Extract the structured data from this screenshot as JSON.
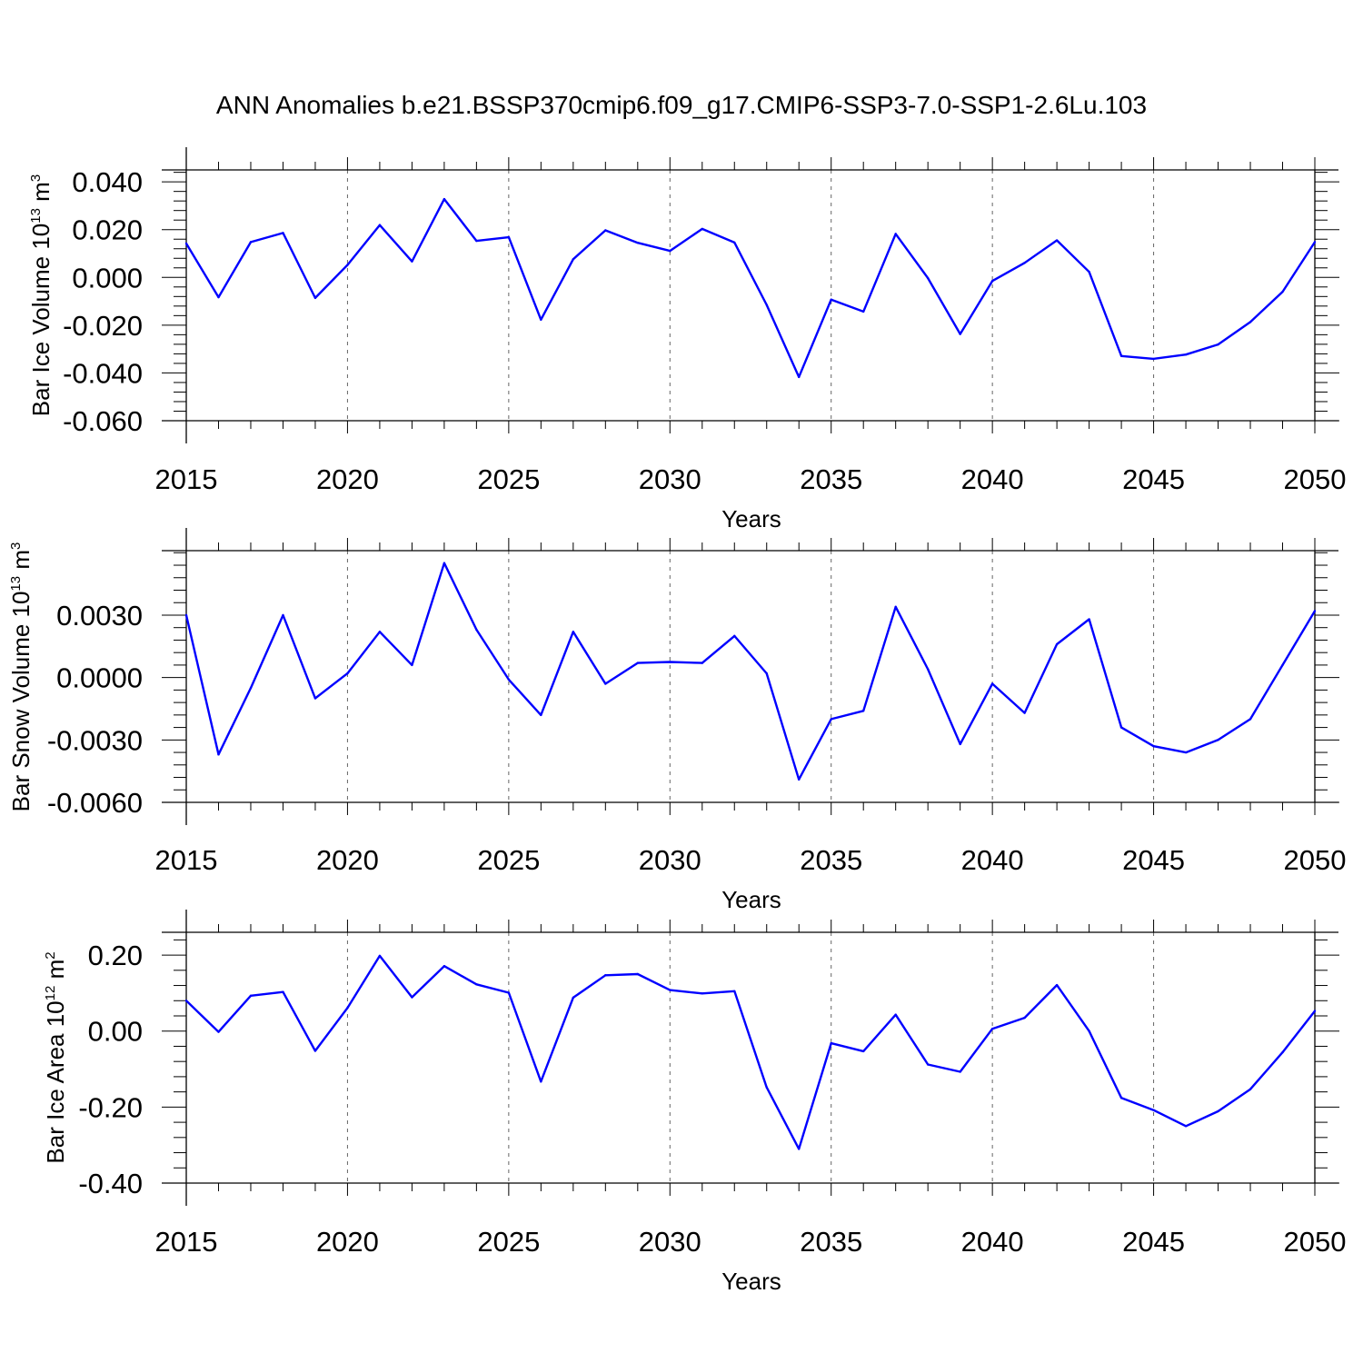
{
  "title": "ANN Anomalies b.e21.BSSP370cmip6.f09_g17.CMIP6-SSP3-7.0-SSP1-2.6Lu.103",
  "colors": {
    "series": "#0000ff",
    "axis": "#000000",
    "grid": "#666666"
  },
  "chart_data": [
    {
      "type": "line",
      "ylabel": "Bar Ice Volume 10",
      "ylabel_exp": "13",
      "ylabel_unit": " m",
      "ylabel_unit_exp": "3",
      "xlabel": "Years",
      "xlim": [
        2015,
        2050
      ],
      "ylim": [
        -0.06,
        0.045
      ],
      "xticks": [
        2015,
        2020,
        2025,
        2030,
        2035,
        2040,
        2045,
        2050
      ],
      "xtick_labels": [
        "2015",
        "2020",
        "2025",
        "2030",
        "2035",
        "2040",
        "2045",
        "2050"
      ],
      "yticks": [
        0.04,
        0.02,
        0.0,
        -0.02,
        -0.04,
        -0.06
      ],
      "ytick_labels": [
        "0.040",
        "0.020",
        "0.000",
        "-0.020",
        "-0.040",
        "-0.060"
      ],
      "grid": "vertical-dashed",
      "x": [
        2015,
        2016,
        2017,
        2018,
        2019,
        2020,
        2021,
        2022,
        2023,
        2024,
        2025,
        2026,
        2027,
        2028,
        2029,
        2030,
        2031,
        2032,
        2033,
        2034,
        2035,
        2036,
        2037,
        2038,
        2039,
        2040,
        2041,
        2042,
        2043,
        2044,
        2045,
        2046,
        2047,
        2048,
        2049,
        2050
      ],
      "values": [
        0.0142,
        -0.0083,
        0.0148,
        0.0186,
        -0.0086,
        0.0052,
        0.0219,
        0.0067,
        0.0328,
        0.0153,
        0.0168,
        -0.0177,
        0.0076,
        0.0197,
        0.0145,
        0.0111,
        0.0203,
        0.0146,
        -0.0115,
        -0.0417,
        -0.0093,
        -0.0143,
        0.0182,
        -0.0003,
        -0.0237,
        -0.0015,
        0.0061,
        0.0155,
        0.0023,
        -0.0329,
        -0.0341,
        -0.0323,
        -0.0281,
        -0.0187,
        -0.006,
        0.0148
      ]
    },
    {
      "type": "line",
      "ylabel": "Bar Snow Volume 10",
      "ylabel_exp": "13",
      "ylabel_unit": " m",
      "ylabel_unit_exp": "3",
      "xlabel": "Years",
      "xlim": [
        2015,
        2050
      ],
      "ylim": [
        -0.006,
        0.0061
      ],
      "xticks": [
        2015,
        2020,
        2025,
        2030,
        2035,
        2040,
        2045,
        2050
      ],
      "xtick_labels": [
        "2015",
        "2020",
        "2025",
        "2030",
        "2035",
        "2040",
        "2045",
        "2050"
      ],
      "yticks": [
        0.003,
        0.0,
        -0.003,
        -0.006
      ],
      "ytick_labels": [
        "0.0030",
        "0.0000",
        "-0.0030",
        "-0.0060"
      ],
      "grid": "vertical-dashed",
      "x": [
        2015,
        2016,
        2017,
        2018,
        2019,
        2020,
        2021,
        2022,
        2023,
        2024,
        2025,
        2026,
        2027,
        2028,
        2029,
        2030,
        2031,
        2032,
        2033,
        2034,
        2035,
        2036,
        2037,
        2038,
        2039,
        2040,
        2041,
        2042,
        2043,
        2044,
        2045,
        2046,
        2047,
        2048,
        2049,
        2050
      ],
      "values": [
        0.003,
        -0.0037,
        -0.0005,
        0.003,
        -0.001,
        0.0002,
        0.0022,
        0.0006,
        0.0055,
        0.0023,
        -0.0001,
        -0.0018,
        0.0022,
        -0.0003,
        0.0007,
        0.00075,
        0.0007,
        0.002,
        0.0002,
        -0.0049,
        -0.002,
        -0.0016,
        0.0034,
        0.0004,
        -0.0032,
        -0.0003,
        -0.0017,
        0.0016,
        0.0028,
        -0.0024,
        -0.0033,
        -0.0036,
        -0.003,
        -0.002,
        0.0006,
        0.0032
      ]
    },
    {
      "type": "line",
      "ylabel": "Bar Ice Area 10",
      "ylabel_exp": "12",
      "ylabel_unit": " m",
      "ylabel_unit_exp": "2",
      "xlabel": "Years",
      "xlim": [
        2015,
        2050
      ],
      "ylim": [
        -0.4,
        0.26
      ],
      "xticks": [
        2015,
        2020,
        2025,
        2030,
        2035,
        2040,
        2045,
        2050
      ],
      "xtick_labels": [
        "2015",
        "2020",
        "2025",
        "2030",
        "2035",
        "2040",
        "2045",
        "2050"
      ],
      "yticks": [
        0.2,
        0.0,
        -0.2,
        -0.4
      ],
      "ytick_labels": [
        "0.20",
        "0.00",
        "-0.20",
        "-0.40"
      ],
      "grid": "vertical-dashed",
      "x": [
        2015,
        2016,
        2017,
        2018,
        2019,
        2020,
        2021,
        2022,
        2023,
        2024,
        2025,
        2026,
        2027,
        2028,
        2029,
        2030,
        2031,
        2032,
        2033,
        2034,
        2035,
        2036,
        2037,
        2038,
        2039,
        2040,
        2041,
        2042,
        2043,
        2044,
        2045,
        2046,
        2047,
        2048,
        2049,
        2050
      ],
      "values": [
        0.08,
        -0.002,
        0.093,
        0.103,
        -0.052,
        0.061,
        0.198,
        0.089,
        0.171,
        0.123,
        0.101,
        -0.133,
        0.088,
        0.147,
        0.15,
        0.108,
        0.099,
        0.105,
        -0.148,
        -0.31,
        -0.032,
        -0.053,
        0.043,
        -0.088,
        -0.107,
        0.006,
        0.035,
        0.121,
        0.0,
        -0.176,
        -0.208,
        -0.25,
        -0.211,
        -0.153,
        -0.056,
        0.053
      ]
    }
  ]
}
